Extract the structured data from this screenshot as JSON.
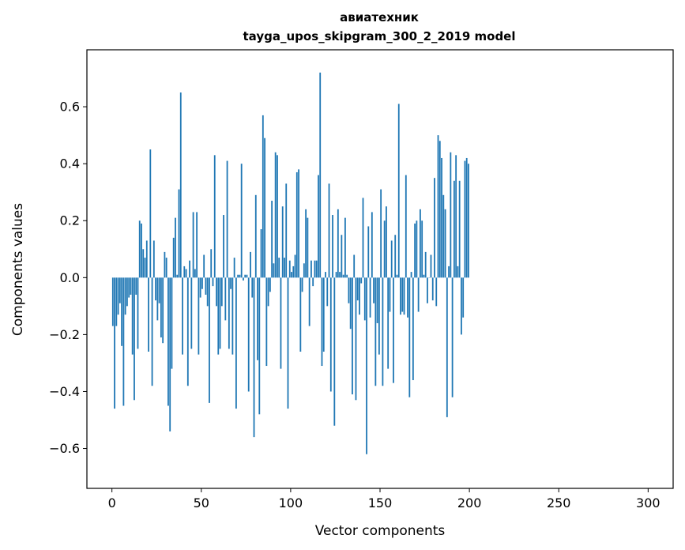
{
  "chart_data": {
    "type": "bar",
    "title_line1": "авиатехник",
    "title_line2": "tayga_upos_skipgram_300_2_2019 model",
    "xlabel": "Vector components",
    "ylabel": "Components values",
    "xlim": [
      -14,
      314
    ],
    "ylim": [
      -0.74,
      0.8
    ],
    "xticks": [
      0,
      50,
      100,
      150,
      200,
      250,
      300
    ],
    "yticks": [
      -0.6,
      -0.4,
      -0.2,
      0.0,
      0.2,
      0.4,
      0.6
    ],
    "ytick_labels": [
      "−0.6",
      "−0.4",
      "−0.2",
      "0.0",
      "0.2",
      "0.4",
      "0.6"
    ],
    "xtick_labels": [
      "0",
      "50",
      "100",
      "150",
      "200",
      "250",
      "300"
    ],
    "bar_color": "#1f77b4",
    "values": [
      -0.17,
      -0.46,
      -0.17,
      -0.13,
      -0.09,
      -0.24,
      -0.45,
      -0.13,
      -0.1,
      -0.07,
      -0.06,
      -0.27,
      -0.43,
      -0.06,
      -0.25,
      0.2,
      0.19,
      0.1,
      0.07,
      0.13,
      -0.26,
      0.45,
      -0.38,
      0.13,
      -0.08,
      -0.15,
      -0.09,
      -0.21,
      -0.23,
      0.09,
      0.07,
      -0.45,
      -0.54,
      -0.32,
      0.14,
      0.21,
      0.01,
      0.31,
      0.65,
      -0.27,
      0.04,
      0.03,
      -0.38,
      0.06,
      -0.25,
      0.23,
      0.03,
      0.23,
      -0.27,
      -0.07,
      -0.04,
      0.08,
      -0.06,
      -0.1,
      -0.44,
      0.1,
      -0.03,
      0.43,
      -0.1,
      -0.27,
      -0.25,
      -0.1,
      0.22,
      -0.15,
      0.41,
      -0.25,
      -0.04,
      -0.27,
      0.07,
      -0.46,
      0.01,
      0.01,
      0.4,
      -0.01,
      0.01,
      0.01,
      -0.4,
      0.09,
      -0.07,
      -0.56,
      0.29,
      -0.29,
      -0.48,
      0.17,
      0.57,
      0.49,
      -0.31,
      -0.1,
      -0.05,
      0.27,
      0.05,
      0.44,
      0.43,
      0.07,
      -0.32,
      0.25,
      0.07,
      0.33,
      -0.46,
      0.06,
      0.02,
      0.04,
      0.08,
      0.37,
      0.38,
      -0.26,
      -0.05,
      0.05,
      0.24,
      0.21,
      -0.17,
      0.06,
      -0.03,
      0.06,
      0.06,
      0.36,
      0.72,
      -0.31,
      -0.26,
      0.02,
      -0.1,
      0.33,
      -0.4,
      0.22,
      -0.52,
      0.02,
      0.24,
      0.02,
      0.15,
      0.01,
      0.21,
      0.01,
      -0.09,
      -0.18,
      -0.41,
      0.08,
      -0.43,
      -0.08,
      -0.13,
      -0.02,
      0.28,
      -0.15,
      -0.62,
      0.18,
      -0.14,
      0.23,
      -0.09,
      -0.38,
      -0.16,
      -0.27,
      0.31,
      -0.38,
      0.2,
      0.25,
      -0.32,
      -0.12,
      0.13,
      -0.37,
      0.15,
      0.01,
      0.61,
      -0.13,
      -0.12,
      -0.13,
      0.36,
      -0.14,
      -0.42,
      0.02,
      -0.36,
      0.19,
      0.2,
      -0.12,
      0.24,
      0.2,
      0.01,
      0.09,
      -0.09,
      0.0,
      0.08,
      -0.08,
      0.35,
      -0.1,
      0.5,
      0.48,
      0.42,
      0.29,
      0.24,
      -0.49,
      0.04,
      0.44,
      -0.42,
      0.34,
      0.43,
      0.04,
      0.34,
      -0.2,
      -0.14,
      0.41,
      0.42,
      0.4
    ]
  }
}
